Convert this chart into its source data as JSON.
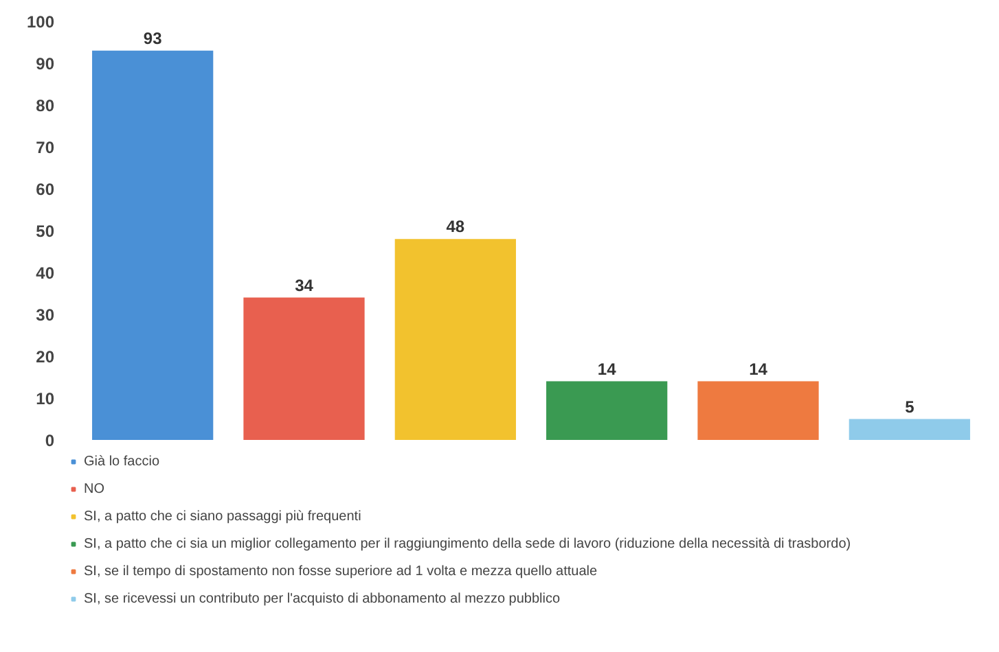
{
  "chart_data": {
    "type": "bar",
    "stacked": true,
    "categories": [
      null,
      null,
      null,
      null,
      null,
      null
    ],
    "series": [
      {
        "name": "Già lo faccio",
        "color": "#4a90d6",
        "values": [
          93,
          null,
          null,
          null,
          null,
          null
        ]
      },
      {
        "name": "NO",
        "color": "#e8604f",
        "values": [
          null,
          34,
          null,
          null,
          null,
          null
        ]
      },
      {
        "name": "SI, a patto che ci siano passaggi più frequenti",
        "color": "#f2c22e",
        "values": [
          null,
          null,
          48,
          null,
          null,
          null
        ]
      },
      {
        "name": "SI, a patto che ci sia un miglior collegamento per il raggiungimento della sede di lavoro (riduzione della necessità di trasbordo)",
        "color": "#3a9a52",
        "values": [
          null,
          null,
          null,
          14,
          null,
          null
        ]
      },
      {
        "name": "SI, se il tempo di spostamento non fosse superiore ad 1 volta e mezza quello attuale",
        "color": "#ee7a40",
        "values": [
          null,
          null,
          null,
          null,
          14,
          null
        ]
      },
      {
        "name": "SI, se ricevessi un contributo per l'acquisto di abbonamento al mezzo pubblico",
        "color": "#8fcbea",
        "values": [
          null,
          null,
          null,
          null,
          null,
          5
        ]
      }
    ],
    "ylim": [
      0,
      100
    ],
    "yticks": [
      0,
      10,
      20,
      30,
      40,
      50,
      60,
      70,
      80,
      90,
      100
    ],
    "legend": "bottom",
    "data_labels": true
  }
}
